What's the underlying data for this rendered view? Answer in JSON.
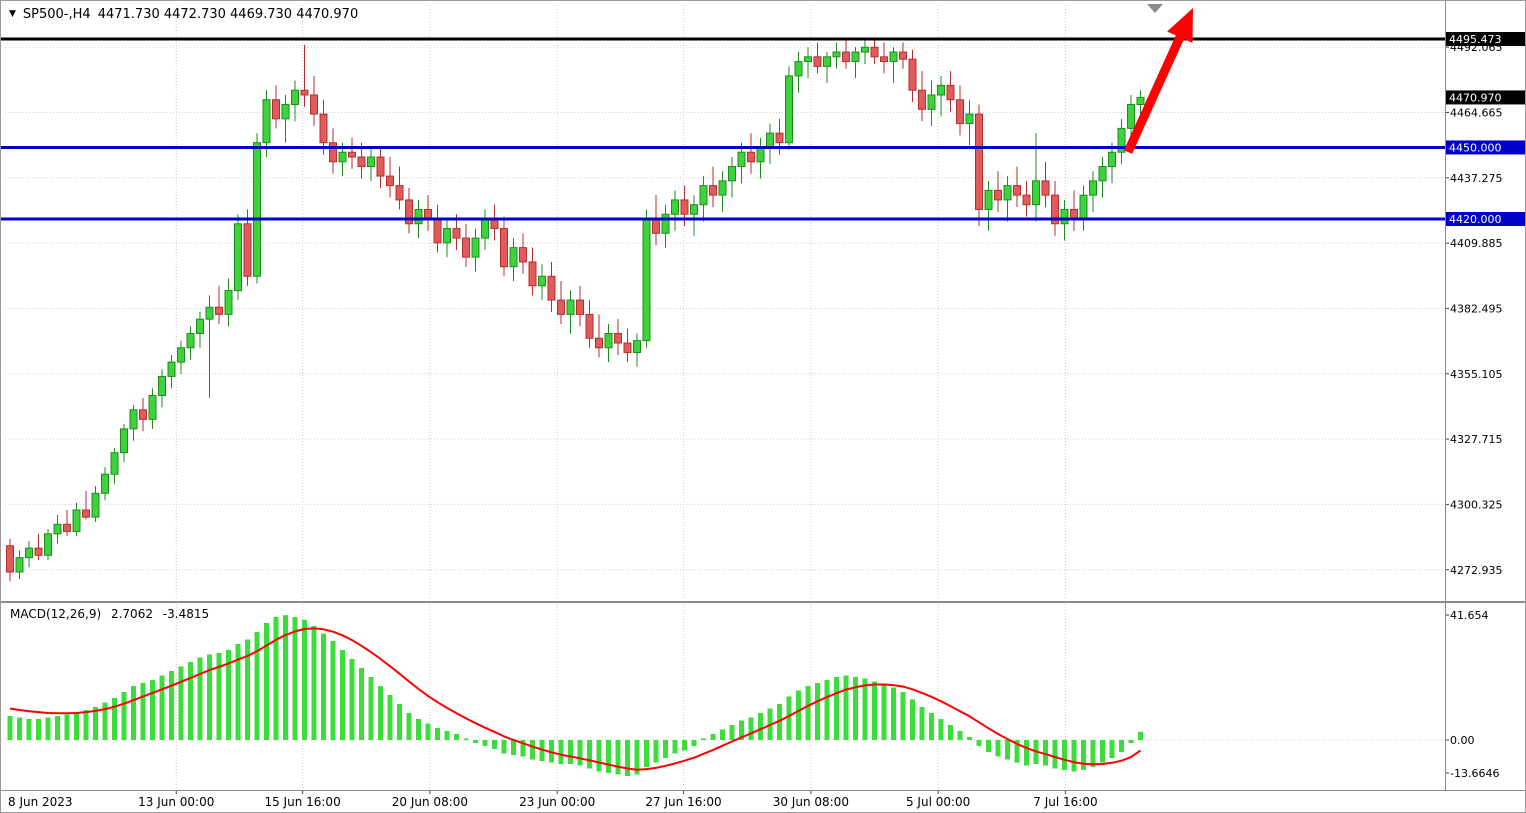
{
  "header": {
    "symbol_period": "SP500-,H4",
    "ohlc_values": "4471.730 4472.730 4469.730 4470.970"
  },
  "colors": {
    "bull": "#3dd33d",
    "bull_stroke": "#1f8b1f",
    "bear": "#e25b5b",
    "bear_stroke": "#b03030",
    "macd_bar": "#3cdc3c",
    "signal": "#ff0000",
    "hline_blue": "#0000c8",
    "hline_black": "#000000",
    "arrow": "#ff0000",
    "grid": "#cdcdcd",
    "badge_text": "#ffffff"
  },
  "chart_data": {
    "type": "candlestick",
    "symbol": "SP500-",
    "timeframe": "H4",
    "quote": {
      "open": "4471.730",
      "high": "4472.730",
      "low": "4469.730",
      "close": "4470.970"
    },
    "price_axis": {
      "gridlines": [
        {
          "value": 4492.065,
          "label": "4492.065"
        },
        {
          "value": 4464.665,
          "label": "4464.665"
        },
        {
          "value": 4437.275,
          "label": "4437.275"
        },
        {
          "value": 4409.885,
          "label": "4409.885"
        },
        {
          "value": 4382.495,
          "label": "4382.495"
        },
        {
          "value": 4355.105,
          "label": "4355.105"
        },
        {
          "value": 4327.715,
          "label": "4327.715"
        },
        {
          "value": 4300.325,
          "label": "4300.325"
        },
        {
          "value": 4272.935,
          "label": "4272.935"
        }
      ],
      "badges": [
        {
          "value": 4492.065,
          "label": "4492.065",
          "bg": "#555555",
          "hidden": true
        },
        {
          "value": 4495.473,
          "label": "4495.473",
          "bg": "#000000"
        },
        {
          "value": 4470.97,
          "label": "4470.970",
          "bg": "#000000"
        },
        {
          "value": 4450.0,
          "label": "4450.000",
          "bg": "#0000c8"
        },
        {
          "value": 4420.0,
          "label": "4420.000",
          "bg": "#0000c8"
        }
      ]
    },
    "hlines": [
      {
        "value": 4495.473,
        "color": "#000000"
      },
      {
        "value": 4450.0,
        "color": "#0000c8"
      },
      {
        "value": 4420.0,
        "color": "#0000c8"
      }
    ],
    "time_axis": {
      "labels": [
        {
          "text": "8 Jun 2023",
          "index": 0,
          "align": "left",
          "grid": false
        },
        {
          "text": "13 Jun 00:00",
          "index": 17.5
        },
        {
          "text": "15 Jun 16:00",
          "index": 30.8
        },
        {
          "text": "20 Jun 08:00",
          "index": 44.2
        },
        {
          "text": "23 Jun 00:00",
          "index": 57.6
        },
        {
          "text": "27 Jun 16:00",
          "index": 70.9
        },
        {
          "text": "30 Jun 08:00",
          "index": 84.3
        },
        {
          "text": "5 Jul 00:00",
          "index": 97.7
        },
        {
          "text": "7 Jul 16:00",
          "index": 111.1
        }
      ]
    },
    "candles": [
      [
        4283,
        4286,
        4268,
        4272
      ],
      [
        4272,
        4281,
        4269,
        4278
      ],
      [
        4278,
        4285,
        4274,
        4282
      ],
      [
        4282,
        4288,
        4277,
        4279
      ],
      [
        4279,
        4290,
        4277,
        4288
      ],
      [
        4288,
        4296,
        4284,
        4292
      ],
      [
        4292,
        4298,
        4287,
        4289
      ],
      [
        4289,
        4301,
        4287,
        4298
      ],
      [
        4298,
        4306,
        4294,
        4295
      ],
      [
        4295,
        4308,
        4293,
        4305
      ],
      [
        4305,
        4316,
        4302,
        4313
      ],
      [
        4313,
        4324,
        4309,
        4322
      ],
      [
        4322,
        4334,
        4318,
        4332
      ],
      [
        4332,
        4342,
        4327,
        4340
      ],
      [
        4340,
        4345,
        4331,
        4336
      ],
      [
        4336,
        4349,
        4332,
        4346
      ],
      [
        4346,
        4357,
        4341,
        4354
      ],
      [
        4354,
        4363,
        4349,
        4360
      ],
      [
        4360,
        4369,
        4355,
        4366
      ],
      [
        4366,
        4375,
        4361,
        4372
      ],
      [
        4372,
        4381,
        4366,
        4378
      ],
      [
        4378,
        4388,
        4345,
        4383
      ],
      [
        4383,
        4392,
        4376,
        4380
      ],
      [
        4380,
        4395,
        4375,
        4390
      ],
      [
        4390,
        4422,
        4386,
        4418
      ],
      [
        4418,
        4424,
        4392,
        4396
      ],
      [
        4396,
        4456,
        4393,
        4452
      ],
      [
        4452,
        4474,
        4446,
        4470
      ],
      [
        4470,
        4476,
        4458,
        4462
      ],
      [
        4462,
        4472,
        4452,
        4468
      ],
      [
        4468,
        4478,
        4461,
        4474
      ],
      [
        4474,
        4493,
        4467,
        4472
      ],
      [
        4472,
        4480,
        4459,
        4464
      ],
      [
        4464,
        4470,
        4447,
        4452
      ],
      [
        4452,
        4458,
        4439,
        4444
      ],
      [
        4444,
        4452,
        4438,
        4448
      ],
      [
        4448,
        4454,
        4441,
        4446
      ],
      [
        4446,
        4452,
        4437,
        4442
      ],
      [
        4442,
        4450,
        4436,
        4446
      ],
      [
        4446,
        4450,
        4433,
        4438
      ],
      [
        4438,
        4446,
        4429,
        4434
      ],
      [
        4434,
        4442,
        4424,
        4428
      ],
      [
        4428,
        4433,
        4414,
        4418
      ],
      [
        4418,
        4428,
        4412,
        4424
      ],
      [
        4424,
        4430,
        4415,
        4420
      ],
      [
        4420,
        4426,
        4406,
        4410
      ],
      [
        4410,
        4420,
        4404,
        4416
      ],
      [
        4416,
        4422,
        4407,
        4412
      ],
      [
        4412,
        4418,
        4400,
        4404
      ],
      [
        4404,
        4416,
        4398,
        4412
      ],
      [
        4412,
        4424,
        4407,
        4420
      ],
      [
        4420,
        4426,
        4411,
        4416
      ],
      [
        4416,
        4421,
        4396,
        4400
      ],
      [
        4400,
        4412,
        4394,
        4408
      ],
      [
        4408,
        4414,
        4397,
        4402
      ],
      [
        4402,
        4408,
        4388,
        4392
      ],
      [
        4392,
        4401,
        4386,
        4396
      ],
      [
        4396,
        4402,
        4381,
        4386
      ],
      [
        4386,
        4394,
        4376,
        4380
      ],
      [
        4380,
        4390,
        4372,
        4386
      ],
      [
        4386,
        4392,
        4375,
        4380
      ],
      [
        4380,
        4386,
        4366,
        4370
      ],
      [
        4370,
        4380,
        4362,
        4366
      ],
      [
        4366,
        4376,
        4360,
        4372
      ],
      [
        4372,
        4378,
        4363,
        4368
      ],
      [
        4368,
        4374,
        4360,
        4364
      ],
      [
        4364,
        4372,
        4358,
        4369
      ],
      [
        4369,
        4424,
        4366,
        4420
      ],
      [
        4420,
        4430,
        4409,
        4414
      ],
      [
        4414,
        4426,
        4408,
        4422
      ],
      [
        4422,
        4432,
        4415,
        4428
      ],
      [
        4428,
        4434,
        4417,
        4422
      ],
      [
        4422,
        4430,
        4413,
        4426
      ],
      [
        4426,
        4438,
        4419,
        4434
      ],
      [
        4434,
        4442,
        4425,
        4430
      ],
      [
        4430,
        4440,
        4423,
        4436
      ],
      [
        4436,
        4446,
        4429,
        4442
      ],
      [
        4442,
        4452,
        4435,
        4448
      ],
      [
        4448,
        4456,
        4439,
        4444
      ],
      [
        4444,
        4454,
        4437,
        4450
      ],
      [
        4450,
        4460,
        4443,
        4456
      ],
      [
        4456,
        4462,
        4447,
        4452
      ],
      [
        4452,
        4484,
        4449,
        4480
      ],
      [
        4480,
        4490,
        4473,
        4486
      ],
      [
        4486,
        4492,
        4479,
        4488
      ],
      [
        4488,
        4494,
        4481,
        4484
      ],
      [
        4484,
        4490,
        4477,
        4488
      ],
      [
        4488,
        4494,
        4483,
        4490
      ],
      [
        4490,
        4495,
        4483,
        4486
      ],
      [
        4486,
        4492,
        4479,
        4490
      ],
      [
        4490,
        4496,
        4485,
        4492
      ],
      [
        4492,
        4495,
        4485,
        4488
      ],
      [
        4488,
        4494,
        4481,
        4486
      ],
      [
        4486,
        4492,
        4477,
        4490
      ],
      [
        4490,
        4494,
        4483,
        4487
      ],
      [
        4487,
        4491,
        4469,
        4474
      ],
      [
        4474,
        4482,
        4461,
        4466
      ],
      [
        4466,
        4478,
        4459,
        4472
      ],
      [
        4472,
        4480,
        4463,
        4476
      ],
      [
        4476,
        4482,
        4465,
        4470
      ],
      [
        4470,
        4476,
        4455,
        4460
      ],
      [
        4460,
        4470,
        4451,
        4464
      ],
      [
        4464,
        4468,
        4417,
        4424
      ],
      [
        4424,
        4436,
        4415,
        4432
      ],
      [
        4432,
        4440,
        4423,
        4428
      ],
      [
        4428,
        4438,
        4419,
        4434
      ],
      [
        4434,
        4442,
        4425,
        4430
      ],
      [
        4430,
        4436,
        4421,
        4426
      ],
      [
        4426,
        4456,
        4419,
        4436
      ],
      [
        4436,
        4444,
        4425,
        4430
      ],
      [
        4430,
        4436,
        4413,
        4418
      ],
      [
        4418,
        4428,
        4411,
        4424
      ],
      [
        4424,
        4432,
        4415,
        4420
      ],
      [
        4420,
        4434,
        4415,
        4430
      ],
      [
        4430,
        4440,
        4423,
        4436
      ],
      [
        4436,
        4446,
        4429,
        4442
      ],
      [
        4442,
        4452,
        4435,
        4448
      ],
      [
        4448,
        4462,
        4443,
        4458
      ],
      [
        4458,
        4472,
        4451,
        4468
      ],
      [
        4468,
        4474,
        4461,
        4471
      ]
    ],
    "macd": {
      "label": "MACD(12,26,9)",
      "value_main": "2.7062",
      "value_signal": "-3.4815",
      "axis": [
        {
          "value": 41.654,
          "label": "41.654"
        },
        {
          "value": 0,
          "label": "0.00"
        },
        {
          "value": -13.6646,
          "label": "-13.6646"
        }
      ],
      "histogram": [
        8,
        7.5,
        7,
        7,
        7.5,
        8,
        8.5,
        9,
        10,
        11,
        12.5,
        14,
        16,
        18,
        19,
        20,
        21.5,
        23,
        24.5,
        26,
        27.5,
        28.5,
        29,
        30,
        32,
        33.5,
        36,
        39,
        41,
        41.6,
        41,
        40,
        38,
        35.5,
        33,
        30,
        27,
        24,
        21,
        18,
        15,
        12,
        9,
        7,
        5.5,
        4,
        3,
        2,
        0.5,
        -1,
        -2,
        -3,
        -4.5,
        -5,
        -5.5,
        -6.5,
        -7,
        -7.5,
        -8,
        -8,
        -8.5,
        -9.5,
        -10.5,
        -11,
        -11.5,
        -12,
        -11.5,
        -9,
        -7.5,
        -6,
        -4.5,
        -3.5,
        -2,
        0.5,
        2,
        3.5,
        5,
        6.5,
        7.5,
        9,
        10.5,
        12,
        14.5,
        16.5,
        18,
        19,
        20,
        21,
        21.5,
        21,
        20.5,
        19.5,
        18.5,
        17.5,
        16,
        13.5,
        11,
        9,
        7,
        5,
        3,
        1,
        -2,
        -4,
        -5.5,
        -6.5,
        -7.5,
        -8.5,
        -8,
        -8.5,
        -9.5,
        -10,
        -10.5,
        -10,
        -9,
        -7.5,
        -6,
        -4,
        -1,
        2.7
      ],
      "signal": [
        10.5,
        10,
        9.6,
        9.3,
        9,
        8.9,
        8.9,
        9,
        9.3,
        9.7,
        10.3,
        11.1,
        12.1,
        13.3,
        14.5,
        15.7,
        16.9,
        18.1,
        19.4,
        20.7,
        22,
        23.3,
        24.4,
        25.5,
        26.8,
        28,
        29.6,
        31.5,
        33.4,
        35,
        36.2,
        37,
        37.2,
        36.9,
        36.1,
        34.9,
        33.3,
        31.4,
        29.3,
        27,
        24.6,
        22.1,
        19.5,
        17,
        14.7,
        12.6,
        10.7,
        8.9,
        7.2,
        5.6,
        4.1,
        2.7,
        1.2,
        0,
        -1.1,
        -2.2,
        -3.2,
        -4.1,
        -4.9,
        -5.5,
        -6.1,
        -6.8,
        -7.5,
        -8.2,
        -8.9,
        -9.5,
        -9.9,
        -9.7,
        -9.3,
        -8.6,
        -7.8,
        -6.9,
        -5.9,
        -4.6,
        -3.3,
        -1.9,
        -0.5,
        0.9,
        2.2,
        3.6,
        5,
        6.4,
        8,
        9.7,
        11.4,
        12.9,
        14.3,
        15.6,
        16.8,
        17.6,
        18.2,
        18.5,
        18.5,
        18.3,
        17.8,
        16.9,
        15.7,
        14.4,
        12.9,
        11.3,
        9.6,
        7.9,
        5.9,
        3.9,
        2,
        0.3,
        -1.3,
        -2.7,
        -3.8,
        -4.7,
        -5.7,
        -6.6,
        -7.4,
        -7.9,
        -8.1,
        -8,
        -7.6,
        -6.9,
        -5.7,
        -3.5
      ]
    }
  }
}
